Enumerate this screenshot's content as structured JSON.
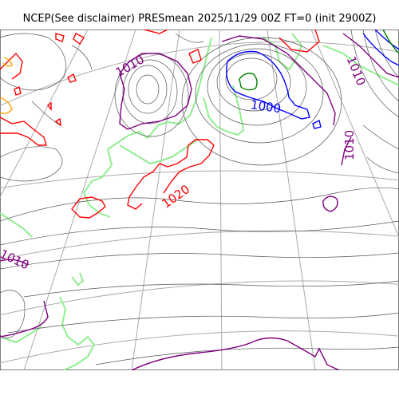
{
  "title": "NCEP(See disclaimer) PRESmean 2025/11/29 00Z FT=0 (init 2900Z)",
  "colors": {
    "isobar_thin": "#555555",
    "isobar_1000": "#0000ff",
    "isobar_1010": "#800080",
    "isobar_1020": "#ff0000",
    "coastline": "#90ee90",
    "graticule": "#aaaaaa",
    "low_core": "#008000",
    "orange": "#ffa500"
  },
  "labels": {
    "l1010_nw": "1010",
    "l1010_ne": "1010",
    "l1010_e": "1010",
    "l1010_w": "1010",
    "l1000": "1000",
    "l1020": "1020"
  }
}
